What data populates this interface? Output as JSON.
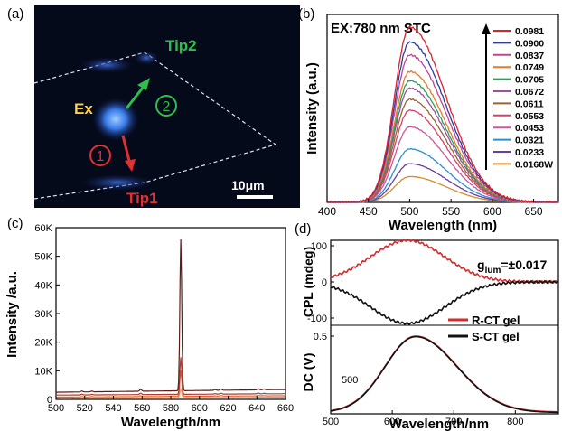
{
  "panels": {
    "a": {
      "label": "(a)",
      "ex_label": "Ex",
      "tip1_label": "Tip1",
      "tip2_label": "Tip2",
      "path1_num": "1",
      "path2_num": "2",
      "scale_bar": "10μm",
      "colors": {
        "ex": "#ffd23c",
        "tip1": "#e03030",
        "tip2": "#2dbe4e",
        "glow": "#3f86ff"
      }
    },
    "b": {
      "label": "(b)",
      "annotation": "EX:780 nm STC",
      "xlabel": "Wavelength (nm)",
      "ylabel": "Intensity (a.u.)",
      "xlim": [
        400,
        680
      ],
      "xticks": [
        "400",
        "450",
        "500",
        "550",
        "600",
        "650"
      ],
      "peak_nm": 500,
      "legend": [
        "0.0981",
        "0.0900",
        "0.0837",
        "0.0749",
        "0.0705",
        "0.0672",
        "0.0611",
        "0.0553",
        "0.0453",
        "0.0321",
        "0.0233",
        "0.0168W"
      ],
      "colors": [
        "#d9232e",
        "#2b3da3",
        "#c6448f",
        "#e37b2a",
        "#2c9f56",
        "#a04da3",
        "#9a6236",
        "#d6406a",
        "#c95a9a",
        "#2b8fd6",
        "#6a3da3",
        "#d68a2a"
      ],
      "peaks": [
        0.95,
        0.87,
        0.8,
        0.71,
        0.66,
        0.62,
        0.56,
        0.5,
        0.41,
        0.29,
        0.21,
        0.14
      ]
    },
    "c": {
      "label": "(c)",
      "xlabel": "Wavelength/nm",
      "ylabel": "Intensity /a.u.",
      "xlim": [
        500,
        660
      ],
      "ylim": [
        0,
        60000
      ],
      "xticks": [
        "500",
        "520",
        "540",
        "560",
        "580",
        "600",
        "620",
        "640",
        "660"
      ],
      "yticks": [
        "0",
        "10K",
        "20K",
        "30K",
        "40K",
        "50K",
        "60K"
      ],
      "line_peaks": [
        53000,
        13000,
        9000,
        3000
      ],
      "line_offsets": [
        2500,
        1500,
        800,
        300
      ],
      "colors": [
        "#5c1c18",
        "#b03a2e",
        "#e0683a",
        "#f19a6a"
      ]
    },
    "d": {
      "label": "(d)",
      "glum_text": "g",
      "glum_sub": "lum",
      "glum_value": "=±0.017",
      "ylabel_cpl": "CPL (mdeg)",
      "ylabel_dc": "DC (V)",
      "xlabel": "Wavelength/nm",
      "cpl_ticks": [
        "100",
        "0",
        "-100"
      ],
      "dc_ticks": [
        "0.5"
      ],
      "inner_label": "500",
      "xticks": [
        "500",
        "600",
        "700",
        "800"
      ],
      "xlim": [
        500,
        870
      ],
      "legend": [
        "R-CT gel",
        "S-CT gel"
      ],
      "colors": [
        "#d42b2b",
        "#111111"
      ]
    }
  }
}
